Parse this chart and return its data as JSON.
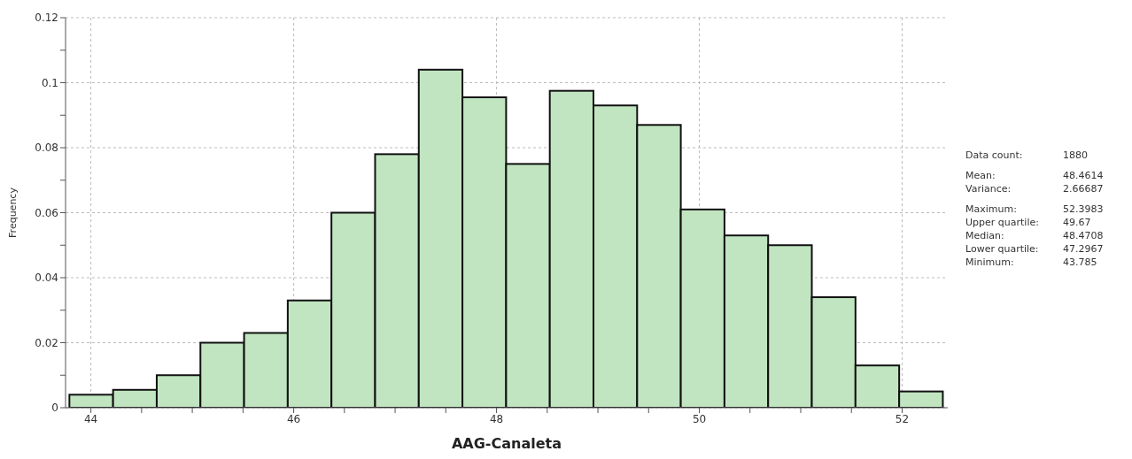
{
  "chart_data": {
    "type": "histogram",
    "xlabel": "AAG-Canaleta",
    "ylabel": "Frequency",
    "bins": [
      43.785,
      44.2157,
      44.6463,
      45.077,
      45.5077,
      45.9383,
      46.369,
      46.7997,
      47.2303,
      47.661,
      48.0917,
      48.5223,
      48.953,
      49.3837,
      49.8143,
      50.245,
      50.6757,
      51.1063,
      51.537,
      51.9677,
      52.3983
    ],
    "values": [
      0.004,
      0.0055,
      0.01,
      0.02,
      0.023,
      0.033,
      0.06,
      0.078,
      0.104,
      0.0955,
      0.075,
      0.0975,
      0.093,
      0.087,
      0.061,
      0.053,
      0.05,
      0.034,
      0.013,
      0.005
    ],
    "color": "#c1e5c0",
    "xlim": [
      43.75,
      52.45
    ],
    "xticks": [
      44,
      {
        "value": 44.5,
        "label": null
      },
      {
        "value": 45,
        "label": null
      },
      {
        "value": 45.5,
        "label": null
      },
      46,
      {
        "value": 46.5,
        "label": null
      },
      {
        "value": 47,
        "label": null
      },
      {
        "value": 47.5,
        "label": null
      },
      48,
      {
        "value": 48.5,
        "label": null
      },
      {
        "value": 49,
        "label": null
      },
      {
        "value": 49.5,
        "label": null
      },
      50,
      {
        "value": 50.5,
        "label": null
      },
      {
        "value": 51,
        "label": null
      },
      {
        "value": 51.5,
        "label": null
      },
      52
    ],
    "ylim": [
      0,
      0.12
    ],
    "yticks": [
      0,
      {
        "value": 0.01,
        "label": null
      },
      0.02,
      {
        "value": 0.03,
        "label": null
      },
      0.04,
      {
        "value": 0.05,
        "label": null
      },
      0.06,
      {
        "value": 0.07,
        "label": null
      },
      0.08,
      {
        "value": 0.09,
        "label": null
      },
      0.1,
      {
        "value": 0.11,
        "label": null
      },
      0.12
    ],
    "grid": true,
    "annotations": [
      "Data count: 1880",
      "Mean: 48.4614",
      "Variance: 2.66687",
      "Maximum: 52.3983",
      "Upper quartile: 49.67",
      "Median: 48.4708",
      "Lower quartile: 47.2967",
      "Minimum: 43.785"
    ]
  }
}
